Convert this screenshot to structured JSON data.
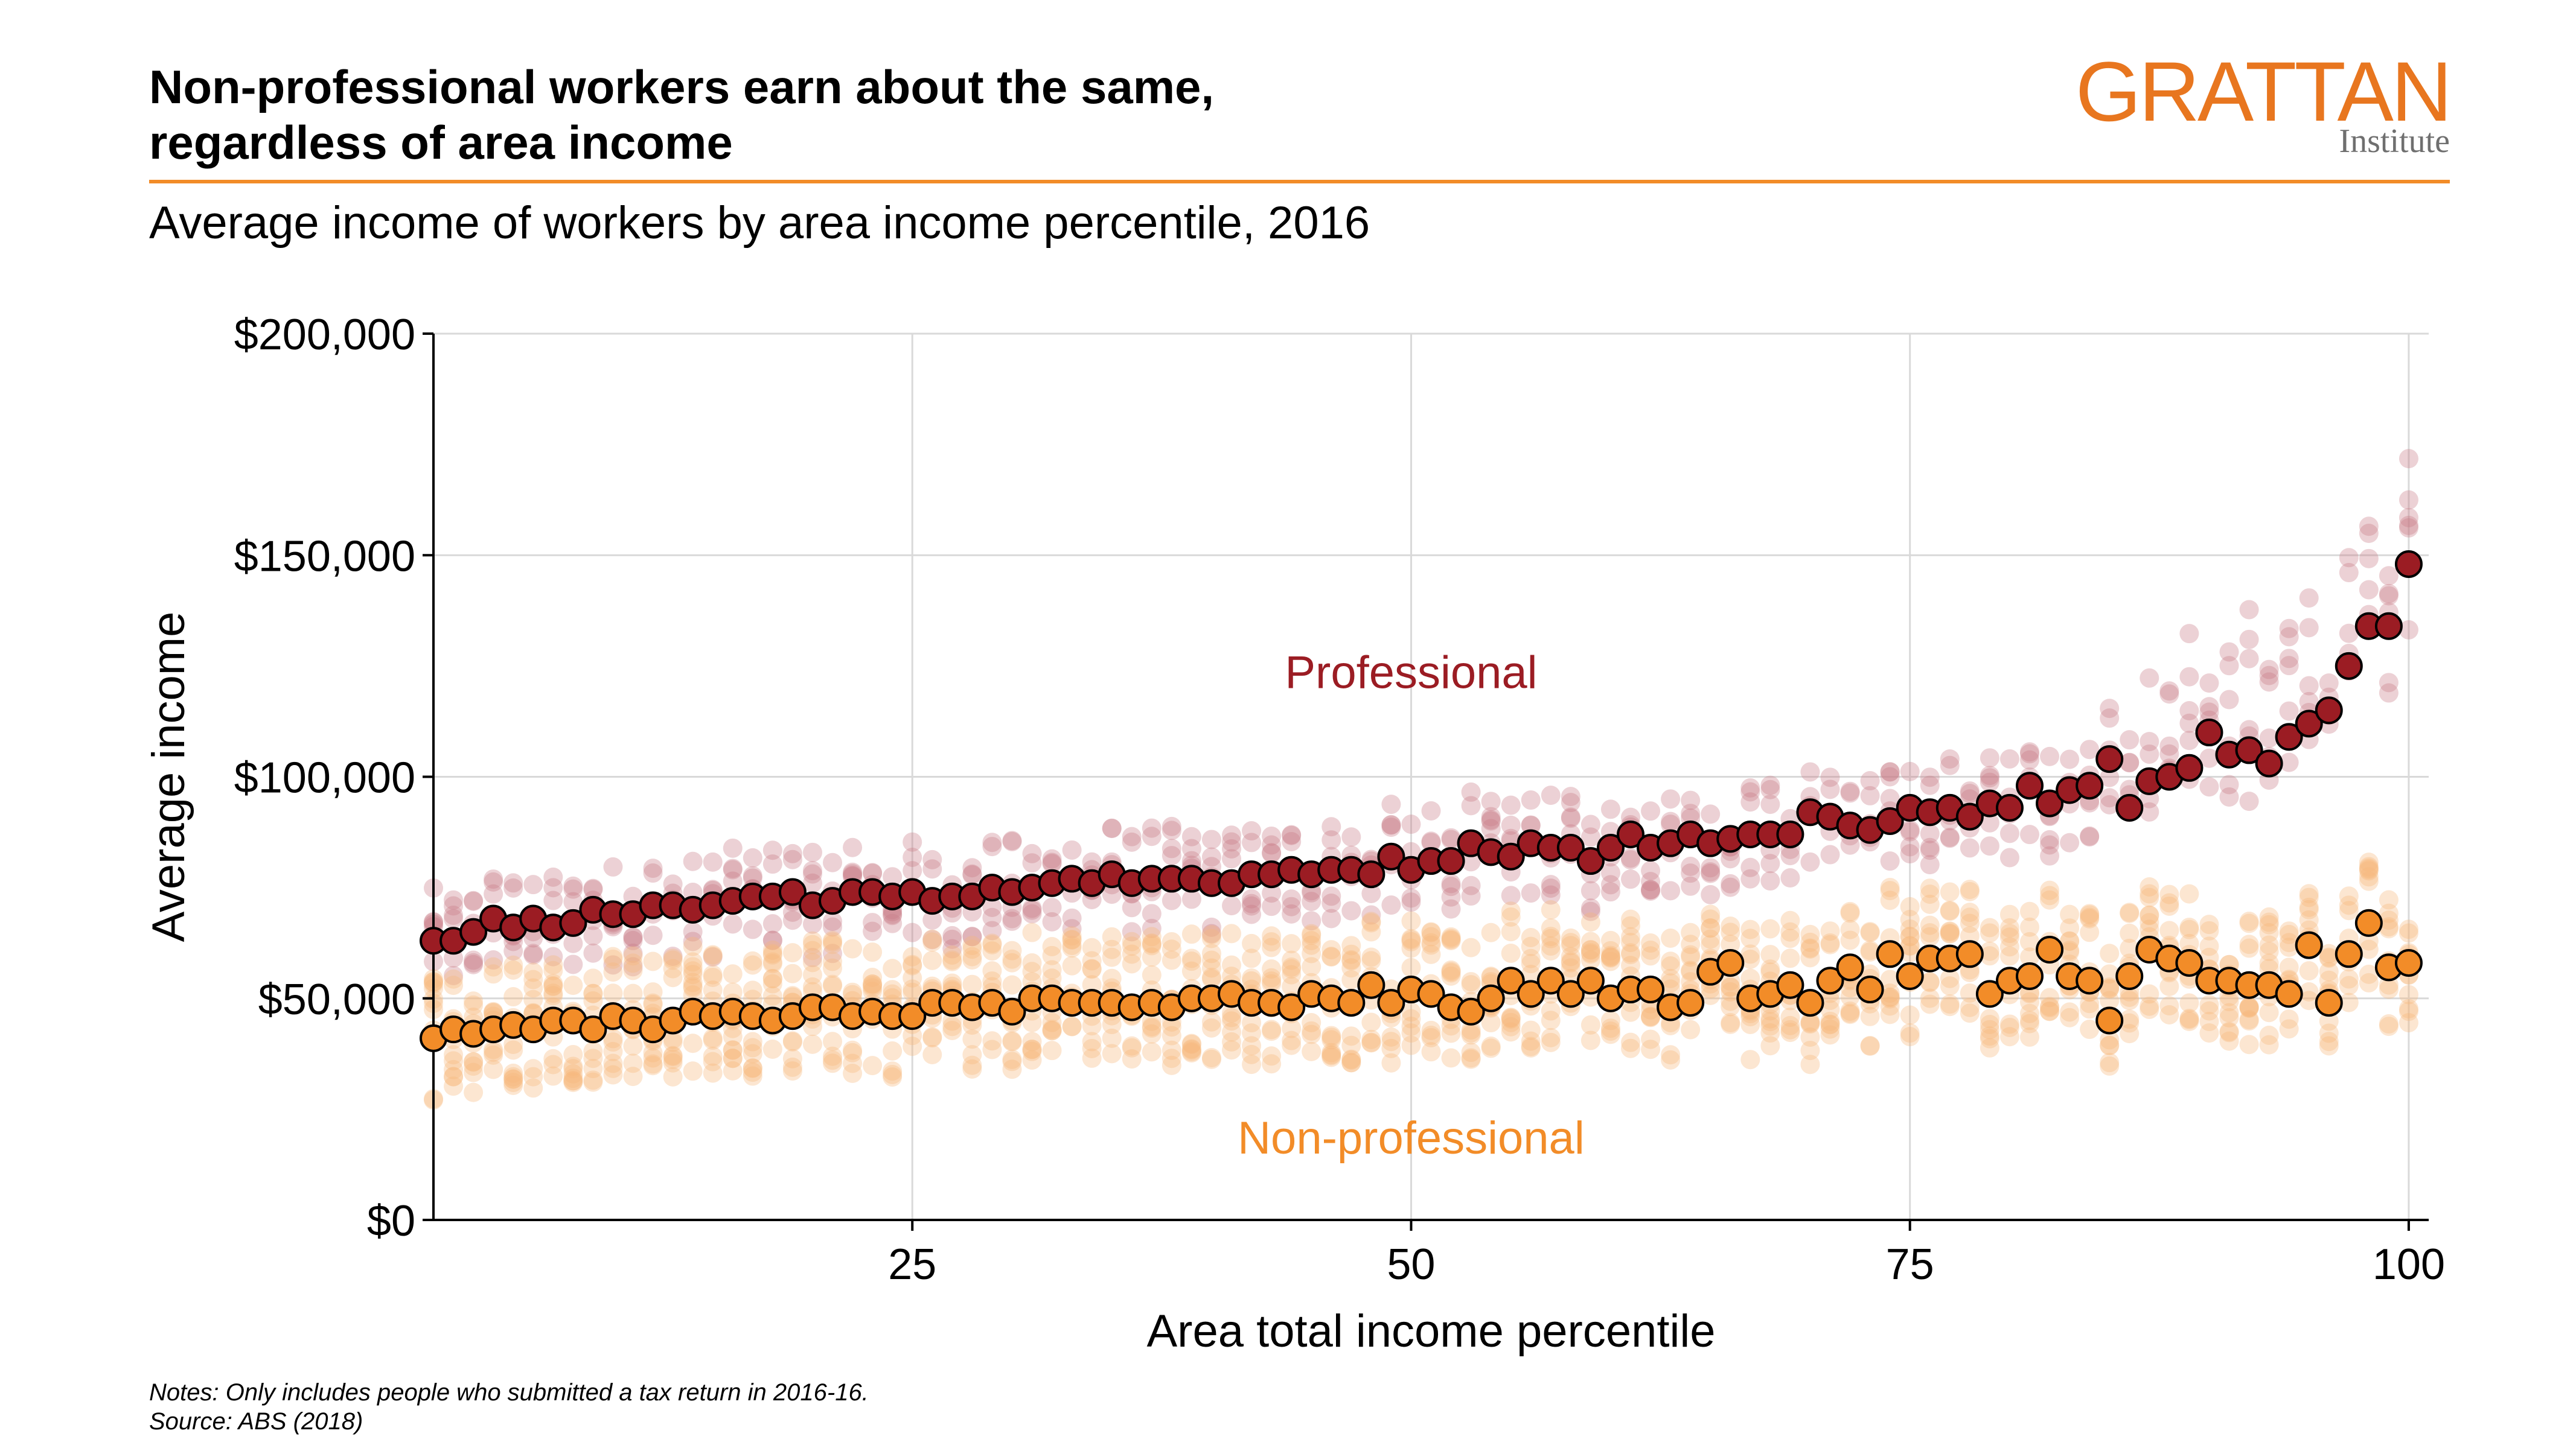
{
  "header": {
    "title_line1": "Non-professional workers earn about the same,",
    "title_line2": "regardless of area income",
    "subtitle": "Average income of workers by area income percentile, 2016"
  },
  "logo": {
    "name": "GRATTAN",
    "sub": "Institute",
    "color": "#e8761f"
  },
  "notes": {
    "line1": "Notes: Only includes people who submitted a tax return in 2016-16.",
    "line2": "Source: ABS (2018)"
  },
  "chart_data": {
    "type": "scatter",
    "xlabel": "Area total income percentile",
    "ylabel": "Average income",
    "xlim": [
      1,
      101
    ],
    "ylim": [
      0,
      200000
    ],
    "x_ticks": [
      25,
      50,
      75,
      100
    ],
    "y_ticks": [
      0,
      50000,
      100000,
      150000,
      200000
    ],
    "y_tick_labels": [
      "$0",
      "$50,000",
      "$100,000",
      "$150,000",
      "$200,000"
    ],
    "grid": true,
    "background_points_note_color_only": "faded points show the spread of individual areas within each percentile",
    "series": [
      {
        "name": "Professional",
        "label_position": {
          "x": 50,
          "y": 120000
        },
        "color": "#9b1c23",
        "faded_color": "#c97a88",
        "spread": {
          "low_offset": -12000,
          "high_offset": 12000
        },
        "x": [
          1,
          2,
          3,
          4,
          5,
          6,
          7,
          8,
          9,
          10,
          11,
          12,
          13,
          14,
          15,
          16,
          17,
          18,
          19,
          20,
          21,
          22,
          23,
          24,
          25,
          26,
          27,
          28,
          29,
          30,
          31,
          32,
          33,
          34,
          35,
          36,
          37,
          38,
          39,
          40,
          41,
          42,
          43,
          44,
          45,
          46,
          47,
          48,
          49,
          50,
          51,
          52,
          53,
          54,
          55,
          56,
          57,
          58,
          59,
          60,
          61,
          62,
          63,
          64,
          65,
          66,
          67,
          68,
          69,
          70,
          71,
          72,
          73,
          74,
          75,
          76,
          77,
          78,
          79,
          80,
          81,
          82,
          83,
          84,
          85,
          86,
          87,
          88,
          89,
          90,
          91,
          92,
          93,
          94,
          95,
          96,
          97,
          98,
          99,
          100
        ],
        "y": [
          63000,
          63000,
          65000,
          68000,
          66000,
          68000,
          66000,
          67000,
          70000,
          69000,
          69000,
          71000,
          71000,
          70000,
          71000,
          72000,
          73000,
          73000,
          74000,
          71000,
          72000,
          74000,
          74000,
          73000,
          74000,
          72000,
          73000,
          73000,
          75000,
          74000,
          75000,
          76000,
          77000,
          76000,
          78000,
          76000,
          77000,
          77000,
          77000,
          76000,
          76000,
          78000,
          78000,
          79000,
          78000,
          79000,
          79000,
          78000,
          82000,
          79000,
          81000,
          81000,
          85000,
          83000,
          82000,
          85000,
          84000,
          84000,
          81000,
          84000,
          87000,
          84000,
          85000,
          87000,
          85000,
          86000,
          87000,
          87000,
          87000,
          92000,
          91000,
          89000,
          88000,
          90000,
          93000,
          92000,
          93000,
          91000,
          94000,
          93000,
          98000,
          94000,
          97000,
          98000,
          104000,
          93000,
          99000,
          100000,
          102000,
          110000,
          105000,
          106000,
          103000,
          109000,
          112000,
          115000,
          125000,
          134000,
          134000,
          148000
        ]
      },
      {
        "name": "Non-professional",
        "label_position": {
          "x": 50,
          "y": 15000
        },
        "color": "#f28c28",
        "faded_color": "#f7b77a",
        "spread": {
          "low_offset": -14000,
          "high_offset": 16000
        },
        "x": [
          1,
          2,
          3,
          4,
          5,
          6,
          7,
          8,
          9,
          10,
          11,
          12,
          13,
          14,
          15,
          16,
          17,
          18,
          19,
          20,
          21,
          22,
          23,
          24,
          25,
          26,
          27,
          28,
          29,
          30,
          31,
          32,
          33,
          34,
          35,
          36,
          37,
          38,
          39,
          40,
          41,
          42,
          43,
          44,
          45,
          46,
          47,
          48,
          49,
          50,
          51,
          52,
          53,
          54,
          55,
          56,
          57,
          58,
          59,
          60,
          61,
          62,
          63,
          64,
          65,
          66,
          67,
          68,
          69,
          70,
          71,
          72,
          73,
          74,
          75,
          76,
          77,
          78,
          79,
          80,
          81,
          82,
          83,
          84,
          85,
          86,
          87,
          88,
          89,
          90,
          91,
          92,
          93,
          94,
          95,
          96,
          97,
          98,
          99,
          100
        ],
        "y": [
          41000,
          43000,
          42000,
          43000,
          44000,
          43000,
          45000,
          45000,
          43000,
          46000,
          45000,
          43000,
          45000,
          47000,
          46000,
          47000,
          46000,
          45000,
          46000,
          48000,
          48000,
          46000,
          47000,
          46000,
          46000,
          49000,
          49000,
          48000,
          49000,
          47000,
          50000,
          50000,
          49000,
          49000,
          49000,
          48000,
          49000,
          48000,
          50000,
          50000,
          51000,
          49000,
          49000,
          48000,
          51000,
          50000,
          49000,
          53000,
          49000,
          52000,
          51000,
          48000,
          47000,
          50000,
          54000,
          51000,
          54000,
          51000,
          54000,
          50000,
          52000,
          52000,
          48000,
          49000,
          56000,
          58000,
          50000,
          51000,
          53000,
          49000,
          54000,
          57000,
          52000,
          60000,
          55000,
          59000,
          59000,
          60000,
          51000,
          54000,
          55000,
          61000,
          55000,
          54000,
          45000,
          55000,
          61000,
          59000,
          58000,
          54000,
          54000,
          53000,
          53000,
          51000,
          62000,
          49000,
          60000,
          67000,
          57000,
          58000
        ]
      }
    ]
  }
}
